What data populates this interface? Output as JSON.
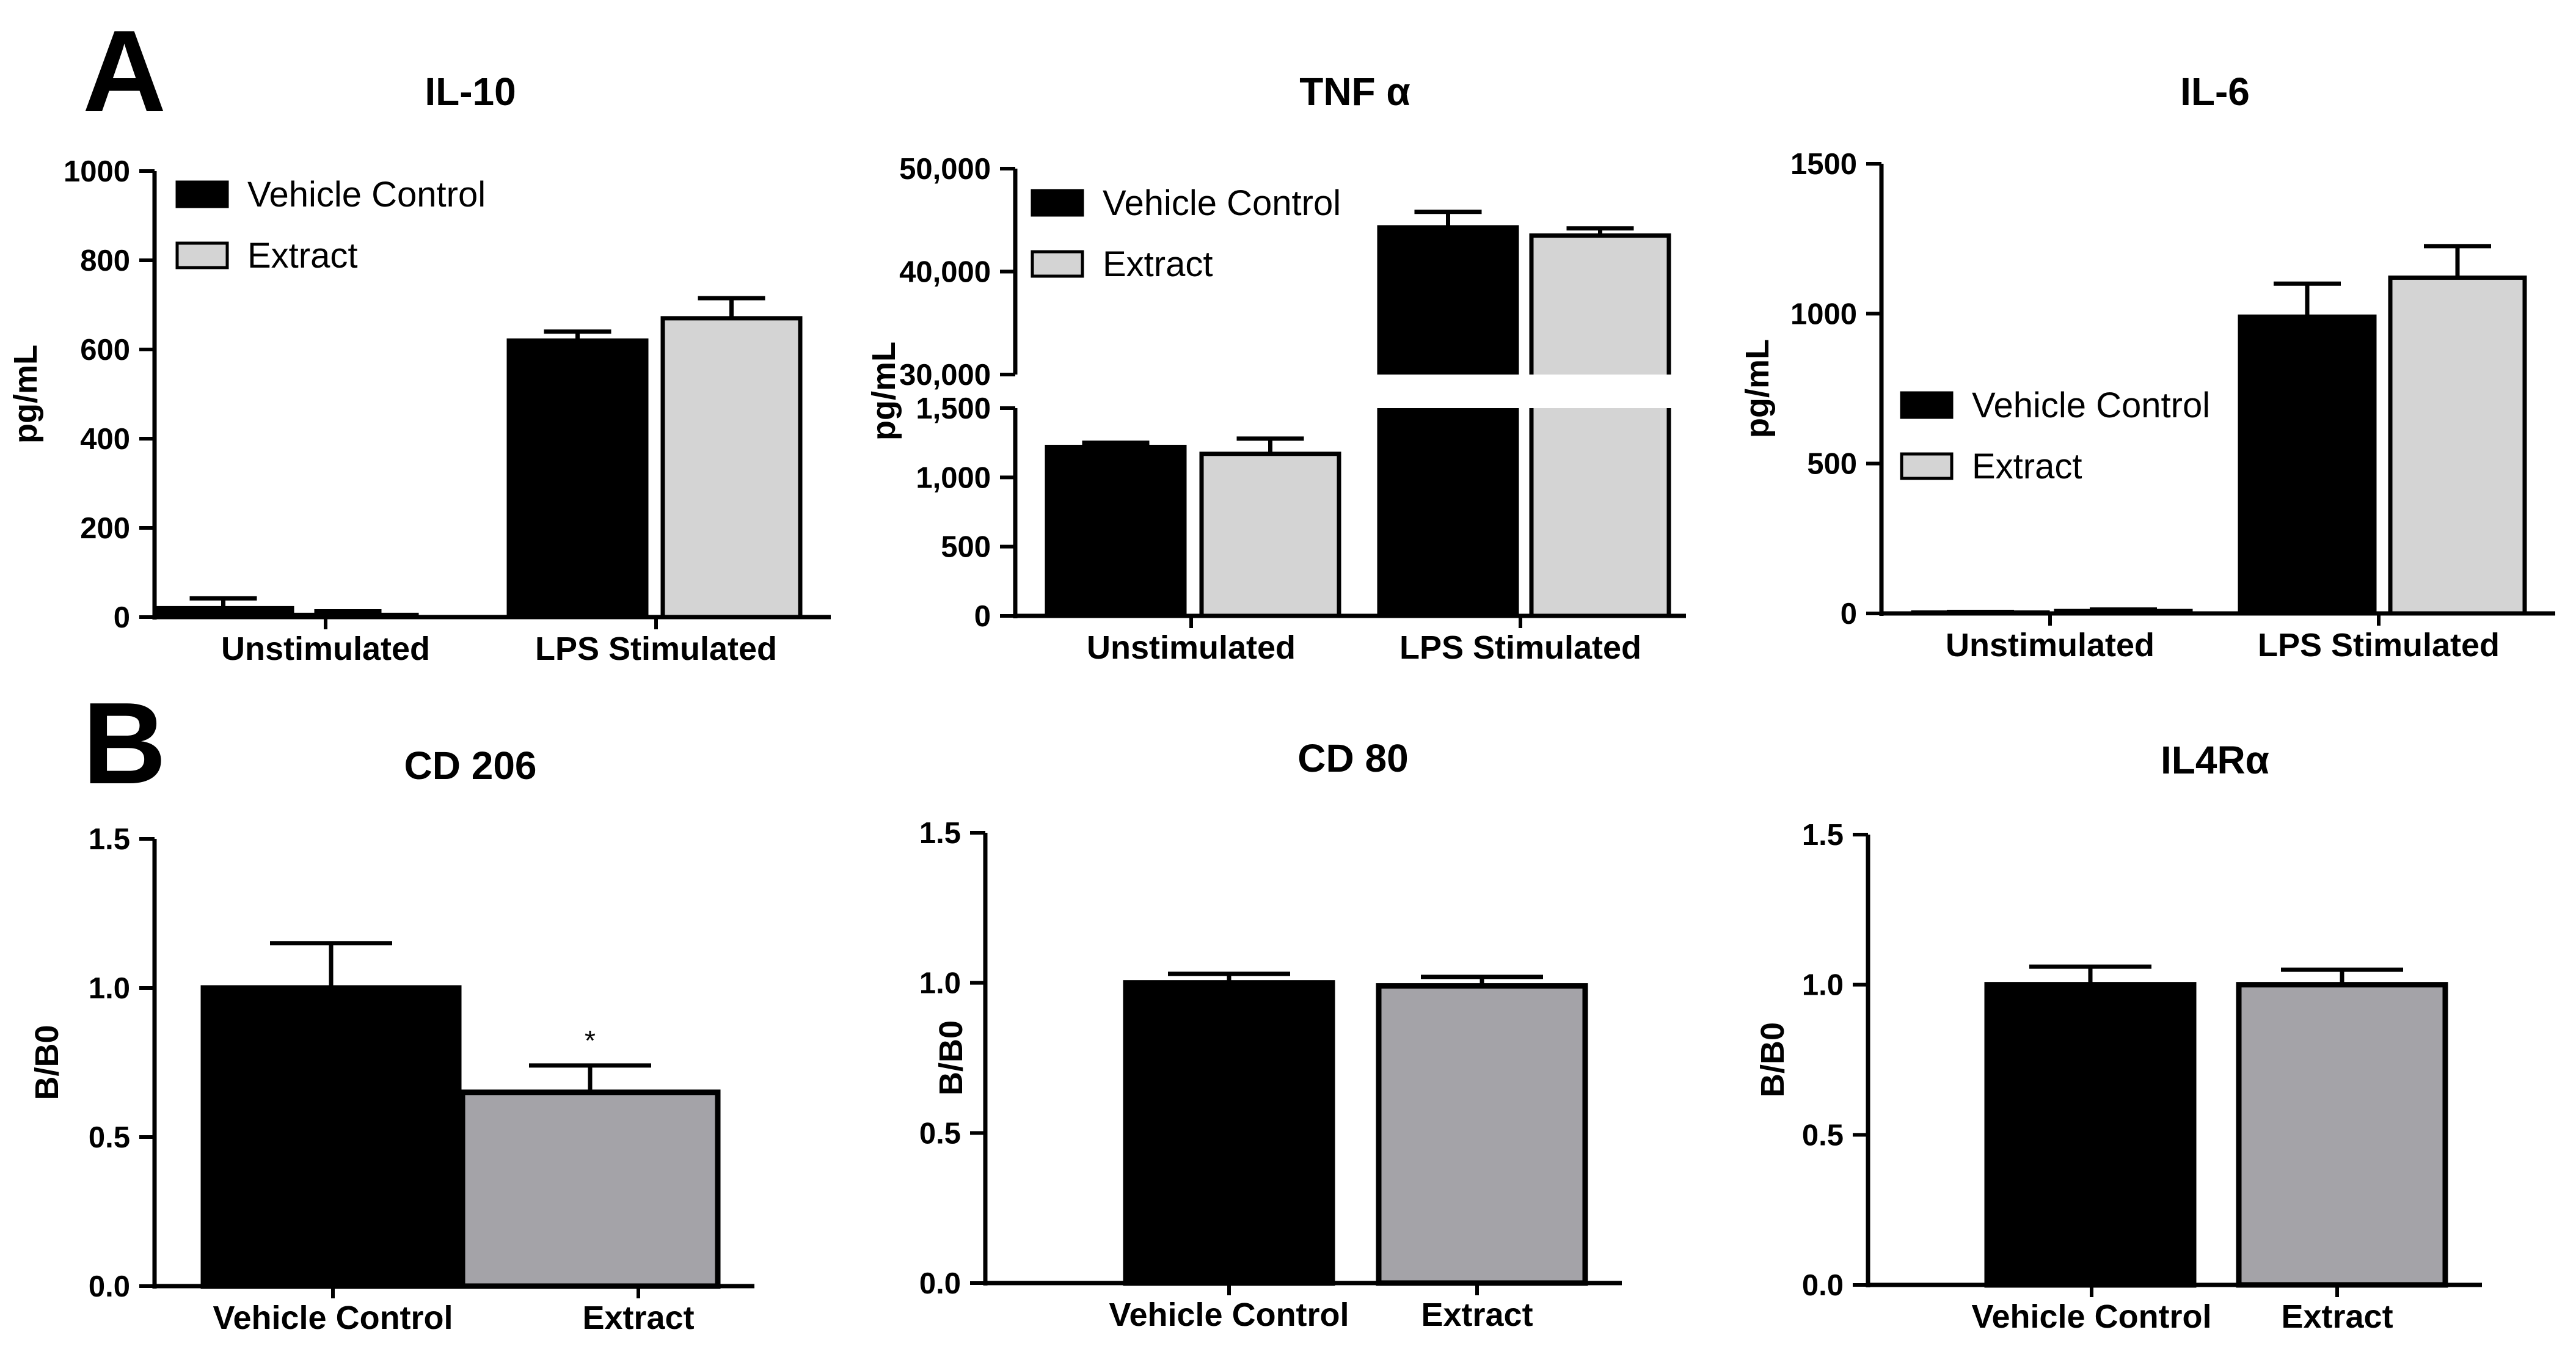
{
  "panel_labels": [
    "A",
    "B"
  ],
  "colors": {
    "vehicle_a": "#000000",
    "extract_a": "#d4d4d4",
    "vehicle_b": "#000000",
    "extract_b": "#a4a3a8"
  },
  "chart_data": [
    {
      "type": "bar",
      "panel": "A",
      "title": "IL-10",
      "xlabel": "",
      "ylabel": "pg/mL",
      "ylim": [
        0,
        1000
      ],
      "yticks": [
        0,
        200,
        400,
        600,
        800,
        1000
      ],
      "categories": [
        "Unstimulated",
        "LPS Stimulated"
      ],
      "series": [
        {
          "name": "Vehicle Control",
          "values": [
            20,
            620
          ],
          "errors": [
            22,
            20
          ]
        },
        {
          "name": "Extract",
          "values": [
            5,
            670
          ],
          "errors": [
            8,
            45
          ]
        }
      ],
      "legend": {
        "position": "top-left"
      }
    },
    {
      "type": "bar",
      "panel": "A",
      "title": "TNF α",
      "xlabel": "",
      "ylabel": "pg/mL",
      "broken_axis": true,
      "ylim_lower": [
        0,
        1500
      ],
      "yticks_lower": [
        0,
        500,
        1000,
        1500
      ],
      "yticklabels_lower": [
        "0",
        "500",
        "1,000",
        "1,500"
      ],
      "ylim_upper": [
        30000,
        50000
      ],
      "yticks_upper": [
        30000,
        40000,
        50000
      ],
      "yticklabels_upper": [
        "30,000",
        "40,000",
        "50,000"
      ],
      "categories": [
        "Unstimulated",
        "LPS Stimulated"
      ],
      "series": [
        {
          "name": "Vehicle Control",
          "values": [
            1220,
            44300
          ],
          "errors": [
            30,
            1500
          ]
        },
        {
          "name": "Extract",
          "values": [
            1170,
            43500
          ],
          "errors": [
            110,
            700
          ]
        }
      ],
      "legend": {
        "position": "top-left"
      }
    },
    {
      "type": "bar",
      "panel": "A",
      "title": "IL-6",
      "xlabel": "",
      "ylabel": "pg/mL",
      "ylim": [
        0,
        1500
      ],
      "yticks": [
        0,
        500,
        1000,
        1500
      ],
      "categories": [
        "Unstimulated",
        "LPS Stimulated"
      ],
      "series": [
        {
          "name": "Vehicle Control",
          "values": [
            3,
            990
          ],
          "errors": [
            2,
            110
          ]
        },
        {
          "name": "Extract",
          "values": [
            8,
            1120
          ],
          "errors": [
            5,
            105
          ]
        }
      ],
      "legend": {
        "position": "center-left"
      }
    },
    {
      "type": "bar",
      "panel": "B",
      "title": "CD 206",
      "xlabel": "",
      "ylabel": "B/B0",
      "ylim": [
        0,
        1.5
      ],
      "yticks": [
        0,
        0.5,
        1.0,
        1.5
      ],
      "yticklabels": [
        "0.0",
        "0.5",
        "1.0",
        "1.5"
      ],
      "categories": [
        "Vehicle Control",
        "Extract"
      ],
      "values": [
        1.0,
        0.65
      ],
      "errors": [
        0.15,
        0.09
      ],
      "annotations": [
        "",
        "*"
      ]
    },
    {
      "type": "bar",
      "panel": "B",
      "title": "CD 80",
      "xlabel": "",
      "ylabel": "B/B0",
      "ylim": [
        0,
        1.5
      ],
      "yticks": [
        0,
        0.5,
        1.0,
        1.5
      ],
      "yticklabels": [
        "0.0",
        "0.5",
        "1.0",
        "1.5"
      ],
      "categories": [
        "Vehicle Control",
        "Extract"
      ],
      "values": [
        1.0,
        0.99
      ],
      "errors": [
        0.03,
        0.03
      ],
      "annotations": [
        "",
        ""
      ]
    },
    {
      "type": "bar",
      "panel": "B",
      "title": "IL4Rα",
      "xlabel": "",
      "ylabel": "B/B0",
      "ylim": [
        0,
        1.5
      ],
      "yticks": [
        0,
        0.5,
        1.0,
        1.5
      ],
      "yticklabels": [
        "0.0",
        "0.5",
        "1.0",
        "1.5"
      ],
      "categories": [
        "Vehicle Control",
        "Extract"
      ],
      "values": [
        1.0,
        1.0
      ],
      "errors": [
        0.06,
        0.05
      ],
      "annotations": [
        "",
        ""
      ]
    }
  ]
}
